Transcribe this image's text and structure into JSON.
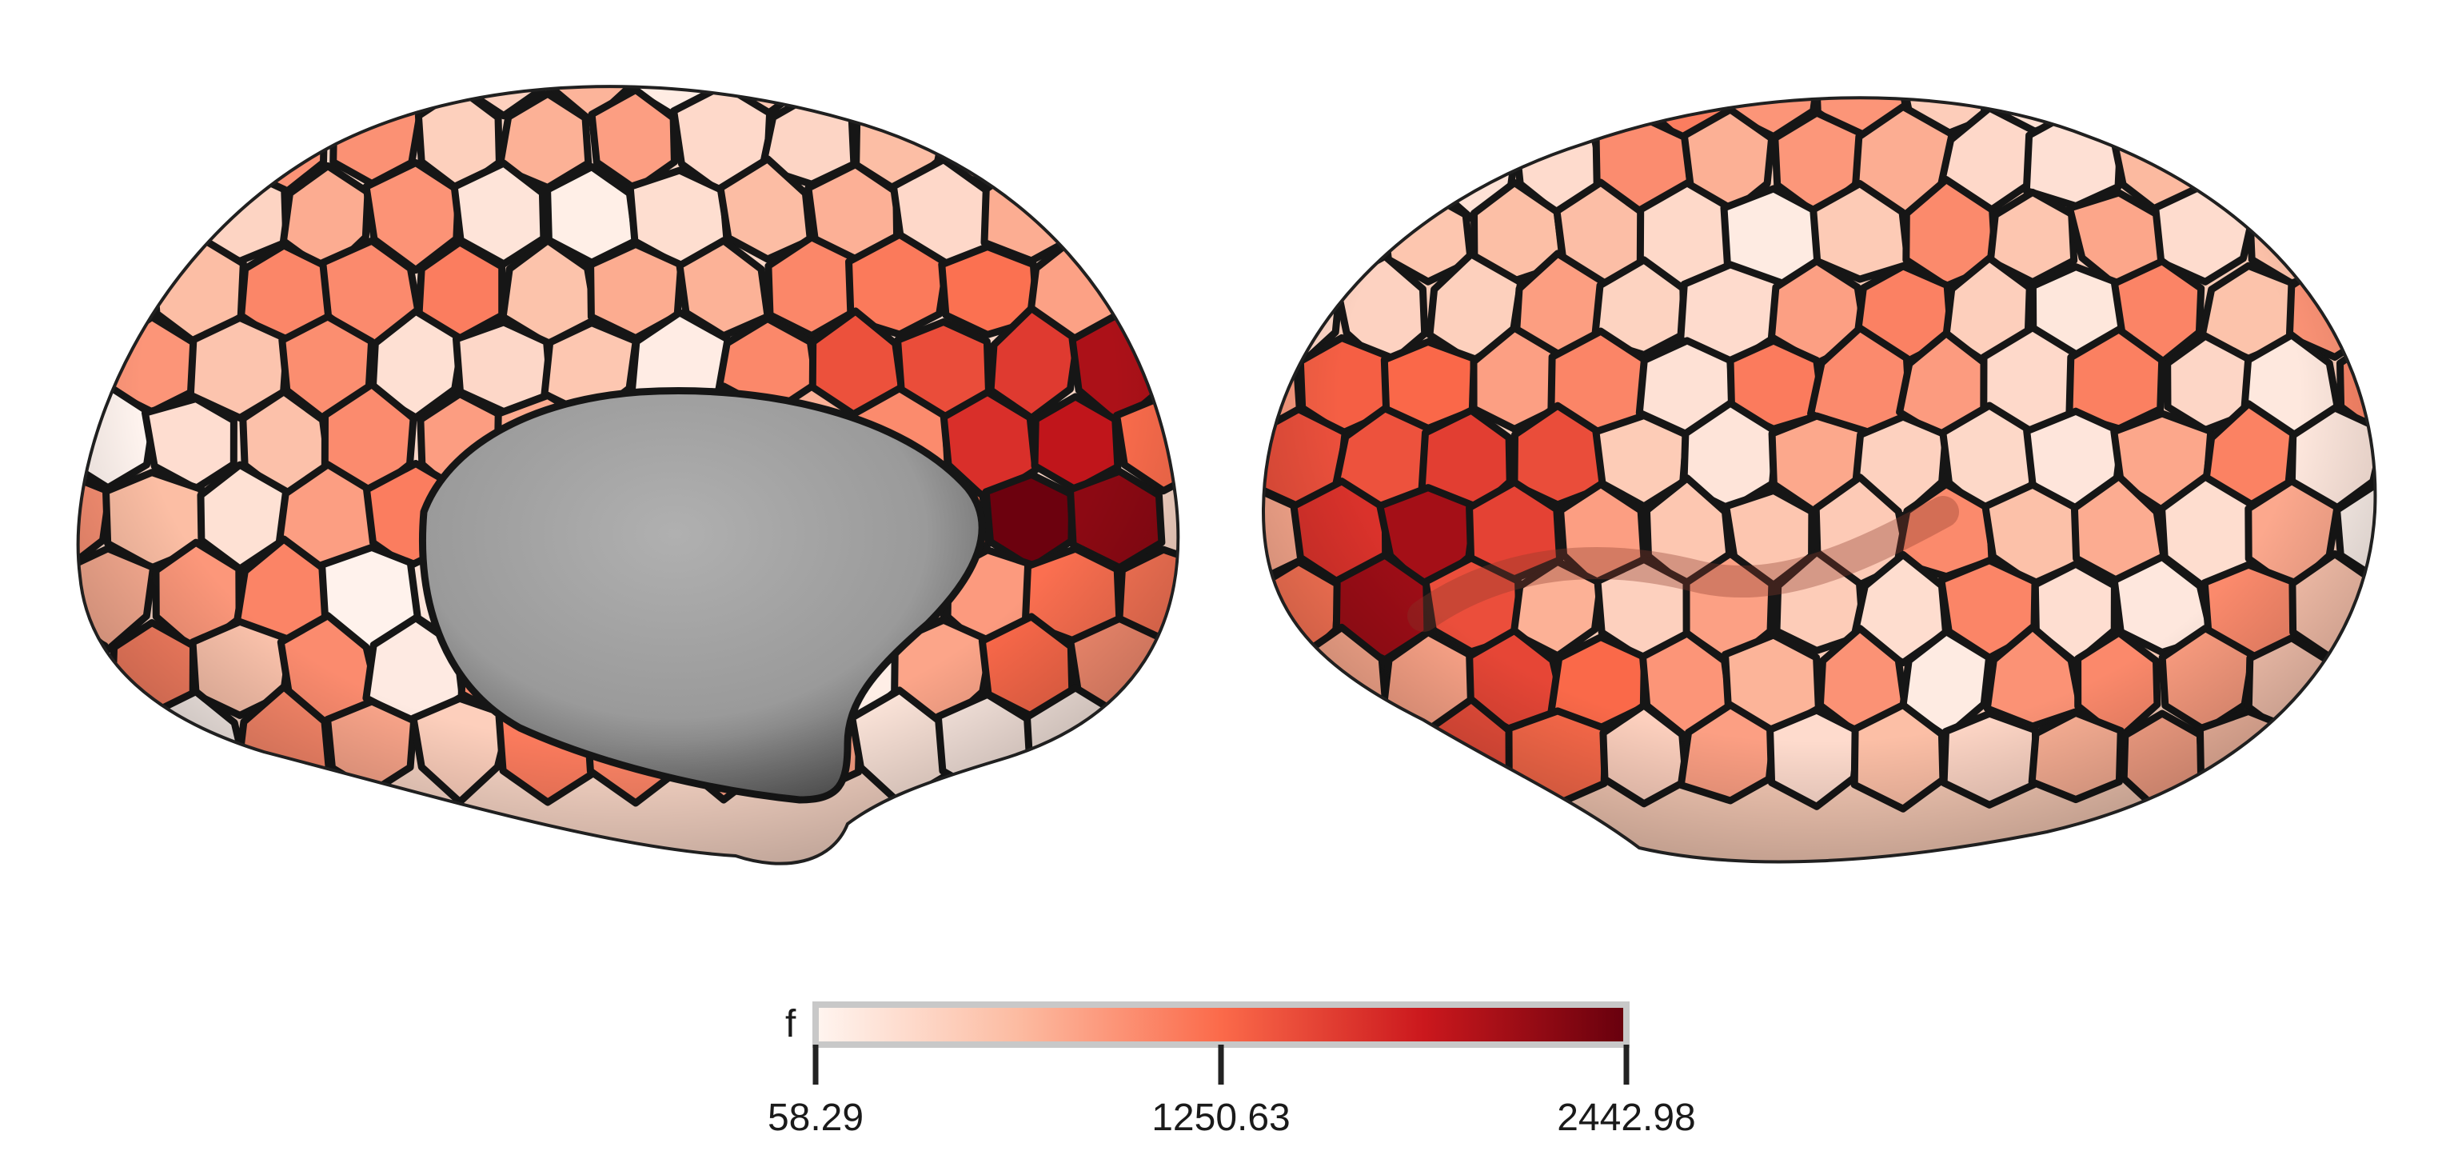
{
  "colorbar": {
    "label": "f",
    "min": 58.29,
    "mid": 1250.63,
    "max": 2442.98,
    "tick_labels": [
      "58.29",
      "1250.63",
      "2442.98"
    ],
    "colormap": [
      "#fff5f0",
      "#fcbba1",
      "#fb6a4a",
      "#cb181d",
      "#67000d"
    ]
  },
  "brain": {
    "medial_wall_color": "#a9a9a9",
    "border_color": "#161616"
  }
}
